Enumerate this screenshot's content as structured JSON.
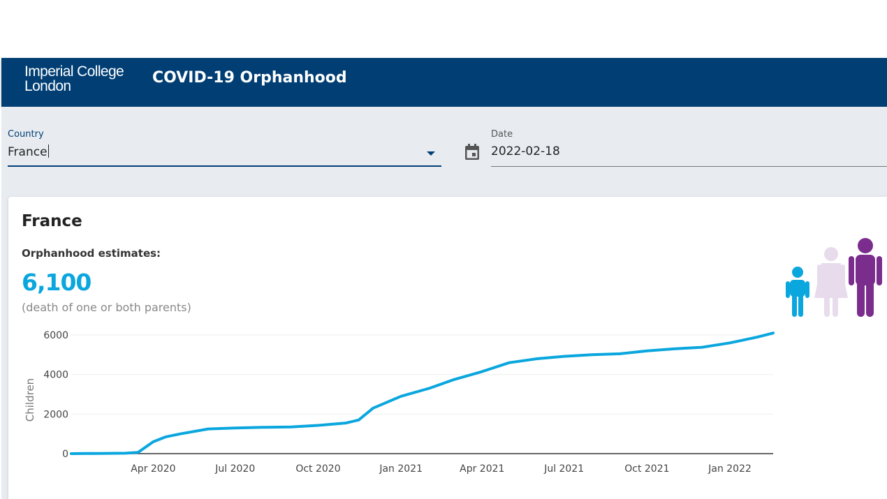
{
  "header": {
    "logo_line1": "Imperial College",
    "logo_line2": "London",
    "app_title": "COVID-19 Orphanhood"
  },
  "filters": {
    "country_label": "Country",
    "country_value": "France",
    "date_label": "Date",
    "date_value": "2022-02-18"
  },
  "summary": {
    "country_title": "France",
    "estimate_label": "Orphanhood estimates:",
    "estimate_value": "6,100",
    "estimate_note": "(death of one or both parents)"
  },
  "icons": {
    "calendar": "calendar-icon",
    "dropdown": "chevron-down-icon",
    "family": "family-icon"
  },
  "colors": {
    "brand": "#003e74",
    "accent": "#0aa6de",
    "child": "#0aa6de",
    "woman": "#e8dcec",
    "man": "#7b2d8e"
  },
  "chart_data": {
    "type": "line",
    "ylabel": "Children",
    "xlabel": "",
    "ylim": [
      0,
      6000
    ],
    "yticks": [
      0,
      2000,
      4000,
      6000
    ],
    "xticks": [
      "Apr 2020",
      "Jul 2020",
      "Oct 2020",
      "Jan 2021",
      "Apr 2021",
      "Jul 2021",
      "Oct 2021",
      "Jan 2022"
    ],
    "series": [
      {
        "x": [
          "2020-01-01",
          "2020-02-01",
          "2020-03-01",
          "2020-03-15",
          "2020-04-01",
          "2020-04-15",
          "2020-05-01",
          "2020-06-01",
          "2020-07-01",
          "2020-08-01",
          "2020-09-01",
          "2020-10-01",
          "2020-11-01",
          "2020-11-15",
          "2020-12-01",
          "2021-01-01",
          "2021-02-01",
          "2021-03-01",
          "2021-04-01",
          "2021-05-01",
          "2021-06-01",
          "2021-07-01",
          "2021-08-01",
          "2021-09-01",
          "2021-10-01",
          "2021-11-01",
          "2021-12-01",
          "2022-01-01",
          "2022-02-01",
          "2022-02-18"
        ],
        "y": [
          0,
          10,
          20,
          60,
          600,
          850,
          1000,
          1250,
          1300,
          1330,
          1350,
          1430,
          1550,
          1700,
          2300,
          2900,
          3300,
          3750,
          4150,
          4600,
          4800,
          4920,
          5000,
          5050,
          5200,
          5300,
          5380,
          5600,
          5900,
          6100
        ]
      }
    ]
  }
}
